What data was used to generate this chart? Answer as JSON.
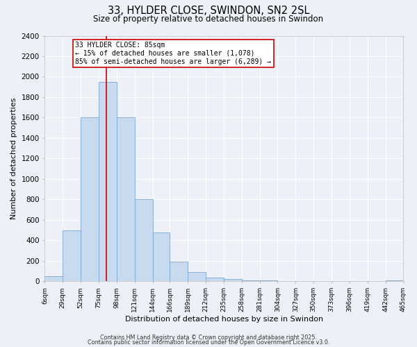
{
  "title": "33, HYLDER CLOSE, SWINDON, SN2 2SL",
  "subtitle": "Size of property relative to detached houses in Swindon",
  "xlabel": "Distribution of detached houses by size in Swindon",
  "ylabel": "Number of detached properties",
  "bar_edges": [
    6,
    29,
    52,
    75,
    98,
    121,
    144,
    166,
    189,
    212,
    235,
    258,
    281,
    304,
    327,
    350,
    373,
    396,
    419,
    442,
    465
  ],
  "bar_heights": [
    50,
    500,
    1600,
    1950,
    1600,
    800,
    480,
    190,
    90,
    40,
    20,
    12,
    8,
    5,
    3,
    2,
    1,
    0,
    0,
    10
  ],
  "bar_color": "#c9d9ee",
  "bar_edgecolor": "#7aa8d4",
  "vline_x": 85,
  "vline_color": "#cc0000",
  "annotation_title": "33 HYLDER CLOSE: 85sqm",
  "annotation_line1": "← 15% of detached houses are smaller (1,078)",
  "annotation_line2": "85% of semi-detached houses are larger (6,289) →",
  "ylim": [
    0,
    2400
  ],
  "yticks": [
    0,
    200,
    400,
    600,
    800,
    1000,
    1200,
    1400,
    1600,
    1800,
    2000,
    2200,
    2400
  ],
  "footer1": "Contains HM Land Registry data © Crown copyright and database right 2025.",
  "footer2": "Contains public sector information licensed under the Open Government Licence v3.0.",
  "bg_color": "#edf1f7",
  "grid_color": "#ffffff"
}
